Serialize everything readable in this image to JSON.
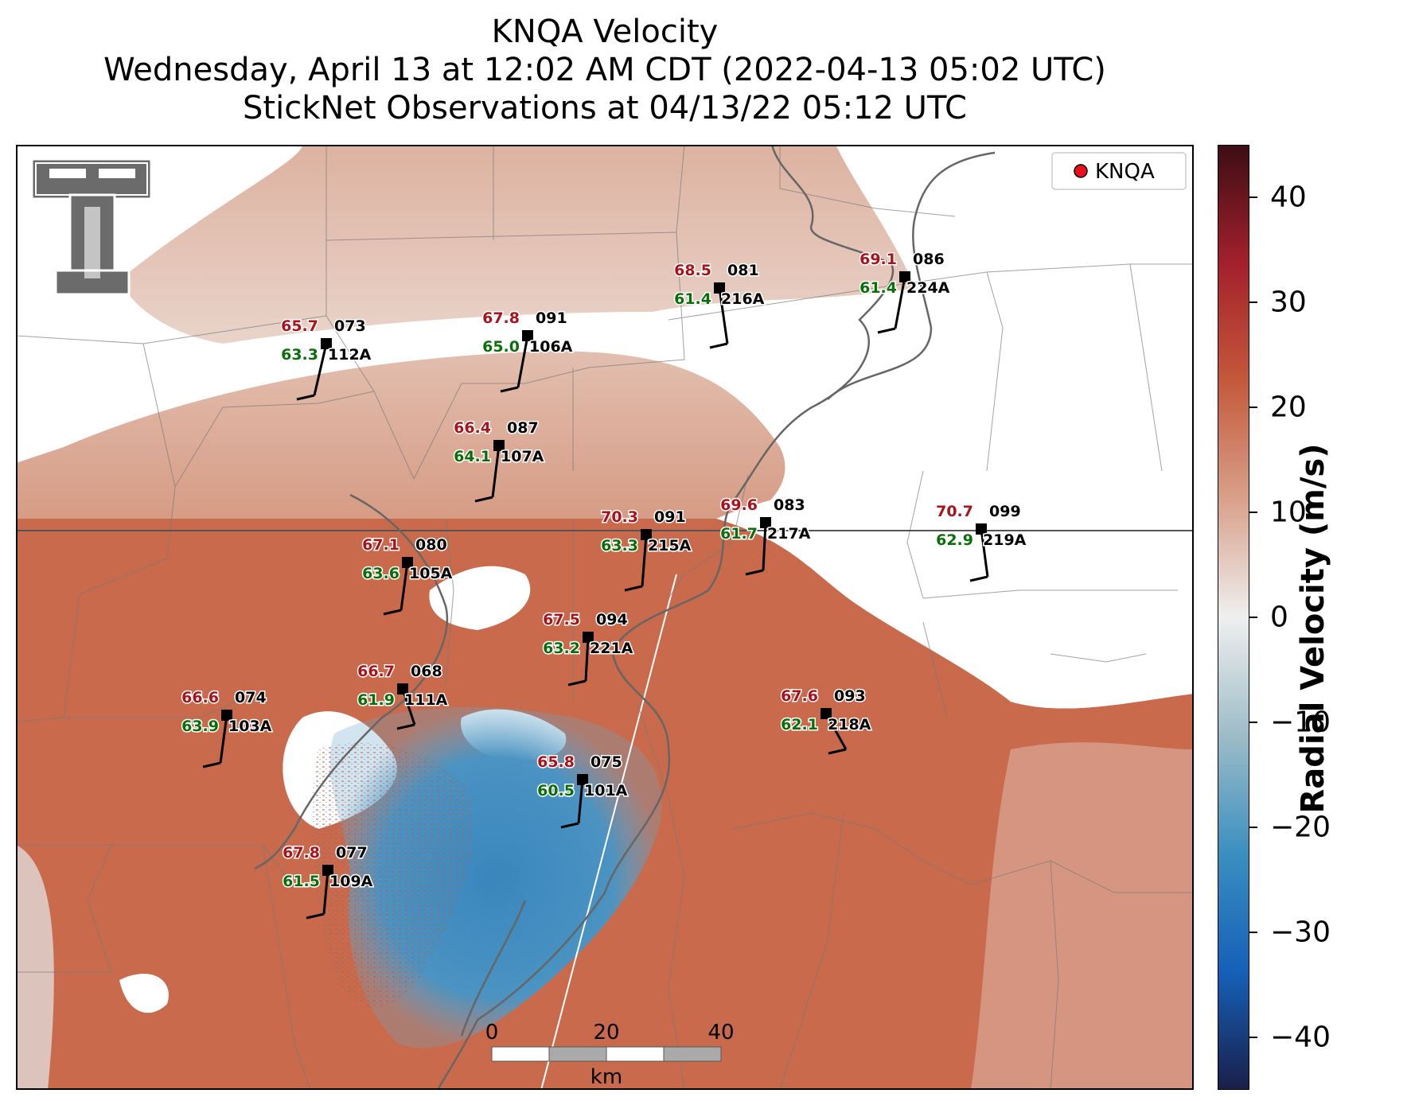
{
  "title": {
    "line1": "KNQA Velocity",
    "line2": "Wednesday, April 13 at 12:02 AM CDT (2022-04-13 05:02 UTC)",
    "line3": "StickNet Observations at 04/13/22 05:12 UTC"
  },
  "legend": {
    "marker_label": "KNQA",
    "marker_color": "#e8101a"
  },
  "scale_bar": {
    "ticks": [
      "0",
      "20",
      "40"
    ],
    "unit": "km"
  },
  "colorbar": {
    "label": "Radial Velocity (m/s)",
    "ticks": [
      "40",
      "30",
      "20",
      "10",
      "0",
      "−10",
      "−20",
      "−30",
      "−40"
    ],
    "tick_values": [
      40,
      30,
      20,
      10,
      0,
      -10,
      -20,
      -30,
      -40
    ],
    "range": [
      -45,
      45
    ],
    "colors": [
      "#1a1f4a",
      "#1560b8",
      "#3a8fc1",
      "#9dbcc7",
      "#efefef",
      "#d9a08a",
      "#c4593a",
      "#a3202c",
      "#3d0d14"
    ]
  },
  "stations": [
    {
      "id": "112A",
      "temp": "65.7",
      "dew": "63.3",
      "dir": "073"
    },
    {
      "id": "106A",
      "temp": "67.8",
      "dew": "65.0",
      "dir": "091"
    },
    {
      "id": "216A",
      "temp": "68.5",
      "dew": "61.4",
      "dir": "081"
    },
    {
      "id": "224A",
      "temp": "69.1",
      "dew": "61.4",
      "dir": "086"
    },
    {
      "id": "107A",
      "temp": "66.4",
      "dew": "64.1",
      "dir": "087"
    },
    {
      "id": "215A",
      "temp": "70.3",
      "dew": "63.3",
      "dir": "091"
    },
    {
      "id": "217A",
      "temp": "69.6",
      "dew": "61.7",
      "dir": "083"
    },
    {
      "id": "219A",
      "temp": "70.7",
      "dew": "62.9",
      "dir": "099"
    },
    {
      "id": "105A",
      "temp": "67.1",
      "dew": "63.6",
      "dir": "080"
    },
    {
      "id": "221A",
      "temp": "67.5",
      "dew": "63.2",
      "dir": "094"
    },
    {
      "id": "111A",
      "temp": "66.7",
      "dew": "61.9",
      "dir": "068"
    },
    {
      "id": "103A",
      "temp": "66.6",
      "dew": "63.9",
      "dir": "074"
    },
    {
      "id": "218A",
      "temp": "67.6",
      "dew": "62.1",
      "dir": "093"
    },
    {
      "id": "101A",
      "temp": "65.8",
      "dew": "60.5",
      "dir": "075"
    },
    {
      "id": "109A",
      "temp": "67.8",
      "dew": "61.5",
      "dir": "077"
    }
  ],
  "colors": {
    "temp": "#a8141c",
    "dew": "#0a6e0a",
    "id": "#000000"
  }
}
